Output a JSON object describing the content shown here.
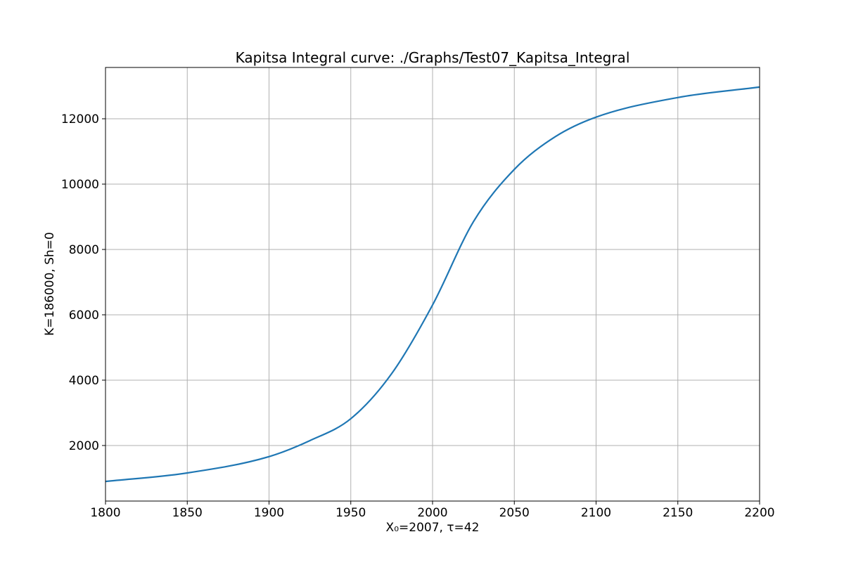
{
  "chart_data": {
    "type": "line",
    "title": "Kapitsa Integral curve: ./Graphs/Test07_Kapitsa_Integral",
    "xlabel": "X₀=2007, τ=42",
    "ylabel": "K=186000, Sh=0",
    "xlim": [
      1800,
      2200
    ],
    "ylim": [
      300,
      13570
    ],
    "xticks": [
      1800,
      1850,
      1900,
      1950,
      2000,
      2050,
      2100,
      2150,
      2200
    ],
    "yticks": [
      2000,
      4000,
      6000,
      8000,
      10000,
      12000
    ],
    "grid": true,
    "line_color": "#1f77b4",
    "series": [
      {
        "x": [
          1800,
          1850,
          1900,
          1925,
          1950,
          1975,
          2000,
          2025,
          2050,
          2075,
          2100,
          2150,
          2200
        ],
        "y": [
          900,
          1160,
          1660,
          2150,
          2820,
          4200,
          6300,
          8850,
          10450,
          11450,
          12050,
          12650,
          12970
        ]
      }
    ]
  }
}
